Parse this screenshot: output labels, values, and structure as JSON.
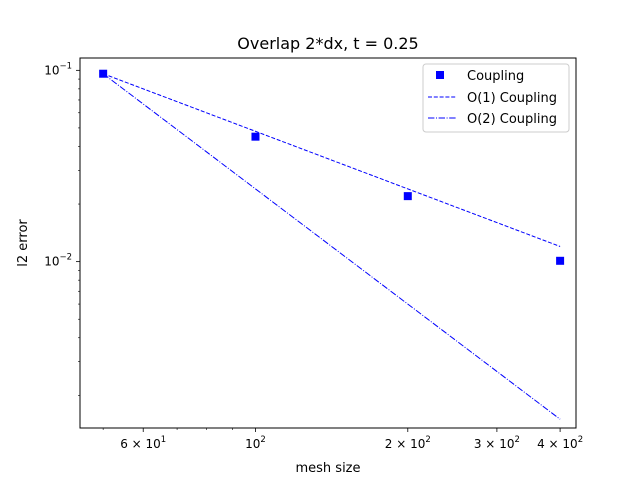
{
  "chart_data": {
    "type": "scatter",
    "title": "Overlap 2*dx, t = 0.25",
    "xlabel": "mesh size",
    "ylabel": "l2 error",
    "xscale": "log",
    "yscale": "log",
    "xlim": [
      45,
      430
    ],
    "ylim": [
      0.00135,
      0.116
    ],
    "grid": false,
    "legend_position": "top-right",
    "x_ticks": [
      {
        "value": 60,
        "base": "6",
        "mult": "×",
        "exp_base": "10",
        "exp": "1"
      },
      {
        "value": 100,
        "base": "",
        "mult": "",
        "exp_base": "10",
        "exp": "2"
      },
      {
        "value": 200,
        "base": "2",
        "mult": "×",
        "exp_base": "10",
        "exp": "2"
      },
      {
        "value": 300,
        "base": "3",
        "mult": "×",
        "exp_base": "10",
        "exp": "2"
      },
      {
        "value": 400,
        "base": "4",
        "mult": "×",
        "exp_base": "10",
        "exp": "2"
      }
    ],
    "y_ticks": [
      {
        "value": 0.1,
        "exp_base": "10",
        "exp": "−1"
      },
      {
        "value": 0.01,
        "exp_base": "10",
        "exp": "−2"
      }
    ],
    "series": [
      {
        "name": "Coupling",
        "style": "marker-square",
        "color": "#0000ff",
        "x": [
          50,
          100,
          200,
          400
        ],
        "y": [
          0.096,
          0.045,
          0.022,
          0.0101
        ]
      },
      {
        "name": "O(1) Coupling",
        "style": "dashed",
        "color": "#0000ff",
        "x": [
          50,
          400
        ],
        "y": [
          0.096,
          0.012
        ]
      },
      {
        "name": "O(2) Coupling",
        "style": "dashdot",
        "color": "#0000ff",
        "x": [
          50,
          400
        ],
        "y": [
          0.096,
          0.0015
        ]
      }
    ]
  }
}
